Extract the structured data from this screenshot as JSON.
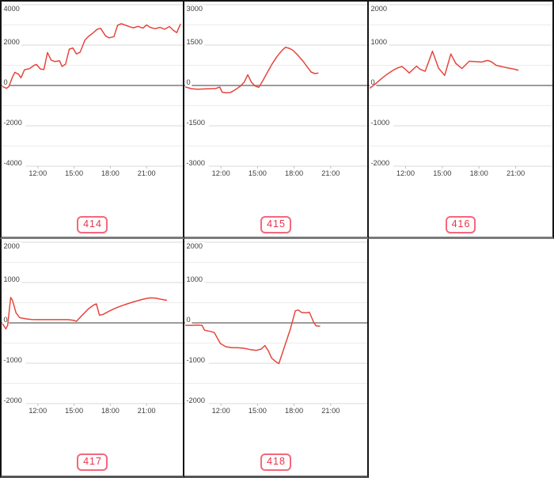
{
  "page": {
    "background": "#ffffff"
  },
  "colors": {
    "line": "#e5453c",
    "grid_minor": "#ececec",
    "grid_major": "#d9d9d9",
    "zero_line": "#7b7b7b",
    "axis_text": "#3d3d3d",
    "tick_mark": "#c0c0c0",
    "badge_border": "#f4687c",
    "badge_text": "#e8354f"
  },
  "chart_data": [
    {
      "type": "line",
      "badge": "414",
      "ylim": [
        -4000,
        4000
      ],
      "y_ticks": [
        4000,
        2000,
        0,
        -2000,
        -4000
      ],
      "y_minor_step": 1000,
      "x_range": [
        9,
        24
      ],
      "x_ticks": [
        {
          "hour": 12,
          "label": "12:00"
        },
        {
          "hour": 15,
          "label": "15:00"
        },
        {
          "hour": 18,
          "label": "18:00"
        },
        {
          "hour": 21,
          "label": "21:00"
        }
      ],
      "points": [
        [
          9.1,
          -60
        ],
        [
          9.4,
          -140
        ],
        [
          9.6,
          -60
        ],
        [
          9.9,
          420
        ],
        [
          10.1,
          650
        ],
        [
          10.4,
          560
        ],
        [
          10.6,
          380
        ],
        [
          10.9,
          780
        ],
        [
          11.3,
          830
        ],
        [
          11.7,
          1000
        ],
        [
          11.9,
          1040
        ],
        [
          12.2,
          820
        ],
        [
          12.5,
          790
        ],
        [
          12.8,
          1630
        ],
        [
          13.1,
          1260
        ],
        [
          13.4,
          1190
        ],
        [
          13.8,
          1220
        ],
        [
          14.0,
          940
        ],
        [
          14.3,
          1060
        ],
        [
          14.6,
          1800
        ],
        [
          14.9,
          1860
        ],
        [
          15.2,
          1560
        ],
        [
          15.5,
          1650
        ],
        [
          15.9,
          2250
        ],
        [
          16.2,
          2430
        ],
        [
          16.6,
          2620
        ],
        [
          16.9,
          2780
        ],
        [
          17.2,
          2830
        ],
        [
          17.6,
          2460
        ],
        [
          17.9,
          2360
        ],
        [
          18.3,
          2420
        ],
        [
          18.6,
          2980
        ],
        [
          18.9,
          3060
        ],
        [
          19.2,
          3000
        ],
        [
          19.6,
          2910
        ],
        [
          19.9,
          2860
        ],
        [
          20.3,
          2930
        ],
        [
          20.7,
          2840
        ],
        [
          21.0,
          3000
        ],
        [
          21.3,
          2880
        ],
        [
          21.7,
          2810
        ],
        [
          22.1,
          2880
        ],
        [
          22.5,
          2790
        ],
        [
          22.9,
          2920
        ],
        [
          23.2,
          2740
        ],
        [
          23.5,
          2620
        ],
        [
          23.8,
          3030
        ]
      ]
    },
    {
      "type": "line",
      "badge": "415",
      "ylim": [
        -3000,
        3000
      ],
      "y_ticks": [
        3000,
        1500,
        0,
        -1500,
        -3000
      ],
      "y_minor_step": 750,
      "x_range": [
        9,
        24
      ],
      "x_ticks": [
        {
          "hour": 12,
          "label": "12:00"
        },
        {
          "hour": 15,
          "label": "15:00"
        },
        {
          "hour": 18,
          "label": "18:00"
        },
        {
          "hour": 21,
          "label": "21:00"
        }
      ],
      "points": [
        [
          9.1,
          -60
        ],
        [
          9.6,
          -120
        ],
        [
          10.1,
          -140
        ],
        [
          10.6,
          -130
        ],
        [
          11.1,
          -120
        ],
        [
          11.6,
          -110
        ],
        [
          11.9,
          -60
        ],
        [
          12.1,
          -250
        ],
        [
          12.4,
          -270
        ],
        [
          12.8,
          -260
        ],
        [
          13.2,
          -150
        ],
        [
          13.6,
          -20
        ],
        [
          13.9,
          120
        ],
        [
          14.2,
          400
        ],
        [
          14.5,
          120
        ],
        [
          14.8,
          -20
        ],
        [
          15.1,
          -70
        ],
        [
          15.4,
          150
        ],
        [
          15.8,
          480
        ],
        [
          16.2,
          800
        ],
        [
          16.6,
          1080
        ],
        [
          17.0,
          1300
        ],
        [
          17.3,
          1420
        ],
        [
          17.6,
          1380
        ],
        [
          17.9,
          1310
        ],
        [
          18.3,
          1130
        ],
        [
          18.7,
          920
        ],
        [
          19.1,
          680
        ],
        [
          19.4,
          500
        ],
        [
          19.7,
          440
        ],
        [
          19.95,
          460
        ]
      ]
    },
    {
      "type": "line",
      "badge": "416",
      "ylim": [
        -2000,
        2000
      ],
      "y_ticks": [
        2000,
        1000,
        0,
        -1000,
        -2000
      ],
      "y_minor_step": 500,
      "x_range": [
        9,
        24
      ],
      "x_ticks": [
        {
          "hour": 12,
          "label": "12:00"
        },
        {
          "hour": 15,
          "label": "15:00"
        },
        {
          "hour": 18,
          "label": "18:00"
        },
        {
          "hour": 21,
          "label": "21:00"
        }
      ],
      "points": [
        [
          9.1,
          -60
        ],
        [
          9.5,
          30
        ],
        [
          10.0,
          160
        ],
        [
          10.5,
          280
        ],
        [
          11.0,
          380
        ],
        [
          11.4,
          440
        ],
        [
          11.7,
          470
        ],
        [
          12.0,
          400
        ],
        [
          12.3,
          310
        ],
        [
          12.9,
          480
        ],
        [
          13.2,
          400
        ],
        [
          13.6,
          350
        ],
        [
          14.2,
          850
        ],
        [
          14.7,
          430
        ],
        [
          15.2,
          250
        ],
        [
          15.7,
          780
        ],
        [
          16.1,
          550
        ],
        [
          16.6,
          420
        ],
        [
          17.2,
          600
        ],
        [
          17.7,
          590
        ],
        [
          18.2,
          580
        ],
        [
          18.7,
          620
        ],
        [
          19.0,
          590
        ],
        [
          19.4,
          500
        ],
        [
          19.8,
          470
        ],
        [
          20.3,
          440
        ],
        [
          20.8,
          410
        ],
        [
          21.2,
          380
        ]
      ]
    },
    {
      "type": "line",
      "badge": "417",
      "ylim": [
        -2000,
        2000
      ],
      "y_ticks": [
        2000,
        1000,
        0,
        -1000,
        -2000
      ],
      "y_minor_step": 500,
      "x_range": [
        9,
        24
      ],
      "x_ticks": [
        {
          "hour": 12,
          "label": "12:00"
        },
        {
          "hour": 15,
          "label": "15:00"
        },
        {
          "hour": 18,
          "label": "18:00"
        },
        {
          "hour": 21,
          "label": "21:00"
        }
      ],
      "points": [
        [
          9.1,
          -30
        ],
        [
          9.35,
          -150
        ],
        [
          9.5,
          -60
        ],
        [
          9.75,
          630
        ],
        [
          9.9,
          560
        ],
        [
          10.2,
          250
        ],
        [
          10.5,
          130
        ],
        [
          11.0,
          100
        ],
        [
          11.5,
          85
        ],
        [
          12.0,
          80
        ],
        [
          12.5,
          80
        ],
        [
          13.0,
          80
        ],
        [
          13.5,
          80
        ],
        [
          14.0,
          80
        ],
        [
          14.5,
          80
        ],
        [
          15.0,
          60
        ],
        [
          15.2,
          40
        ],
        [
          15.7,
          200
        ],
        [
          16.2,
          350
        ],
        [
          16.6,
          440
        ],
        [
          16.85,
          470
        ],
        [
          17.1,
          190
        ],
        [
          17.4,
          210
        ],
        [
          17.9,
          290
        ],
        [
          18.4,
          360
        ],
        [
          18.9,
          420
        ],
        [
          19.4,
          470
        ],
        [
          19.9,
          520
        ],
        [
          20.4,
          560
        ],
        [
          20.9,
          600
        ],
        [
          21.3,
          620
        ],
        [
          21.7,
          615
        ],
        [
          22.1,
          590
        ],
        [
          22.4,
          575
        ],
        [
          22.65,
          560
        ]
      ]
    },
    {
      "type": "line",
      "badge": "418",
      "ylim": [
        -2000,
        2000
      ],
      "y_ticks": [
        2000,
        1000,
        0,
        -1000,
        -2000
      ],
      "y_minor_step": 500,
      "x_range": [
        9,
        24
      ],
      "x_ticks": [
        {
          "hour": 12,
          "label": "12:00"
        },
        {
          "hour": 15,
          "label": "15:00"
        },
        {
          "hour": 18,
          "label": "18:00"
        },
        {
          "hour": 21,
          "label": "21:00"
        }
      ],
      "points": [
        [
          9.1,
          -60
        ],
        [
          9.6,
          -60
        ],
        [
          10.1,
          -55
        ],
        [
          10.45,
          -60
        ],
        [
          10.65,
          -180
        ],
        [
          11.1,
          -210
        ],
        [
          11.45,
          -240
        ],
        [
          11.95,
          -510
        ],
        [
          12.4,
          -590
        ],
        [
          12.9,
          -615
        ],
        [
          13.4,
          -615
        ],
        [
          13.9,
          -630
        ],
        [
          14.4,
          -660
        ],
        [
          14.9,
          -680
        ],
        [
          15.3,
          -650
        ],
        [
          15.6,
          -560
        ],
        [
          15.9,
          -700
        ],
        [
          16.15,
          -870
        ],
        [
          16.45,
          -950
        ],
        [
          16.75,
          -1010
        ],
        [
          17.2,
          -600
        ],
        [
          17.7,
          -150
        ],
        [
          18.1,
          300
        ],
        [
          18.35,
          320
        ],
        [
          18.6,
          260
        ],
        [
          19.0,
          250
        ],
        [
          19.25,
          265
        ],
        [
          19.6,
          20
        ],
        [
          19.8,
          -75
        ],
        [
          20.1,
          -80
        ]
      ]
    }
  ]
}
